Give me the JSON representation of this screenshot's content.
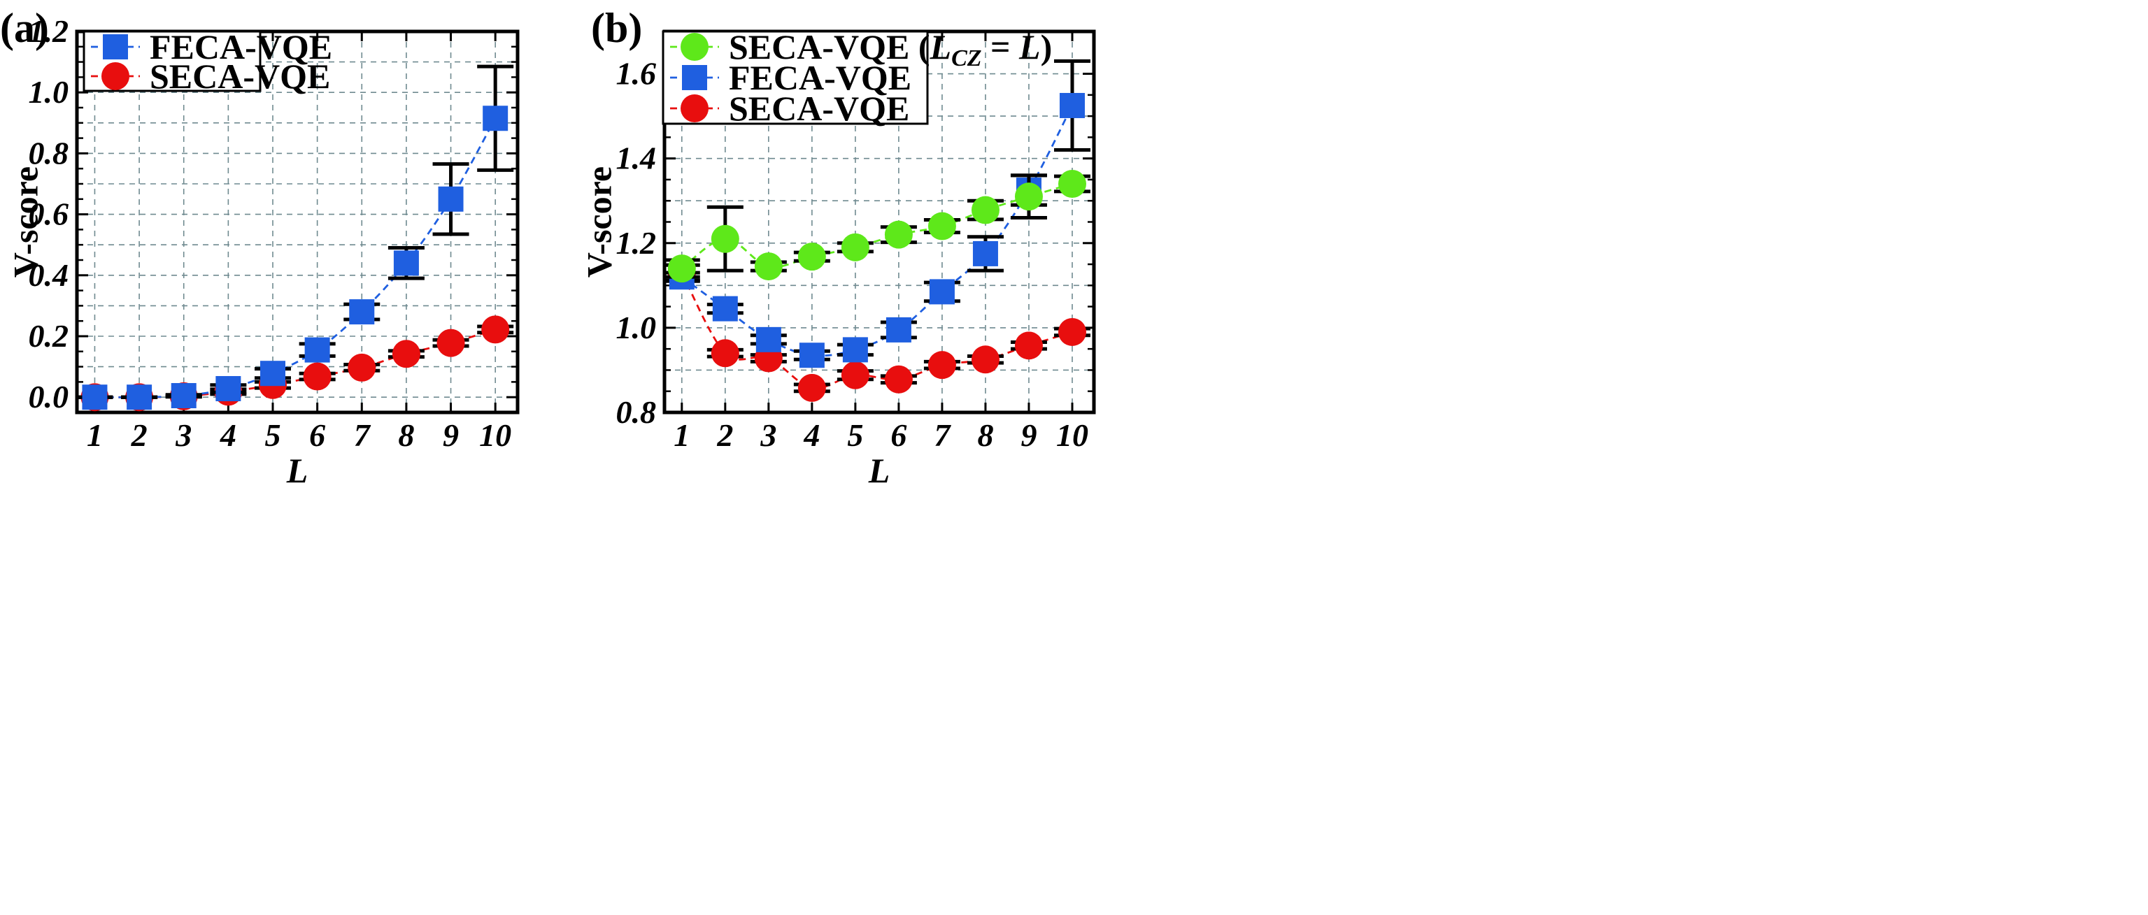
{
  "chart_data": [
    {
      "type": "line",
      "panel_label": "(a)",
      "xlabel": "L",
      "ylabel": "V-score",
      "xlim": [
        0.6,
        10.5
      ],
      "ylim": [
        -0.05,
        1.2
      ],
      "x": [
        1,
        2,
        3,
        4,
        5,
        6,
        7,
        8,
        9,
        10
      ],
      "x_ticks": [
        "1",
        "2",
        "3",
        "4",
        "5",
        "6",
        "7",
        "8",
        "9",
        "10"
      ],
      "y_ticks": [
        "0.0",
        "0.2",
        "0.4",
        "0.6",
        "0.8",
        "1.0",
        "1.2"
      ],
      "y_tick_values": [
        0.0,
        0.2,
        0.4,
        0.6,
        0.8,
        1.0,
        1.2
      ],
      "grid": true,
      "legend_position": "top-left",
      "series": [
        {
          "name": "FECA-VQE",
          "color": "#1f5fe0",
          "marker": "square",
          "values": [
            0.0,
            0.0,
            0.005,
            0.028,
            0.078,
            0.155,
            0.28,
            0.44,
            0.65,
            0.915
          ],
          "err_low": [
            0.0,
            0.0,
            0.003,
            0.012,
            0.015,
            0.02,
            0.025,
            0.05,
            0.115,
            0.17
          ],
          "err_high": [
            0.0,
            0.0,
            0.003,
            0.012,
            0.015,
            0.02,
            0.025,
            0.05,
            0.115,
            0.17
          ]
        },
        {
          "name": "SECA-VQE",
          "color": "#e80e0e",
          "marker": "circle",
          "values": [
            0.0,
            0.0,
            0.003,
            0.018,
            0.04,
            0.068,
            0.097,
            0.142,
            0.178,
            0.222
          ],
          "err_low": [
            0.0,
            0.0,
            0.002,
            0.008,
            0.01,
            0.01,
            0.01,
            0.01,
            0.01,
            0.01
          ],
          "err_high": [
            0.0,
            0.0,
            0.002,
            0.008,
            0.01,
            0.01,
            0.01,
            0.01,
            0.01,
            0.01
          ]
        }
      ]
    },
    {
      "type": "line",
      "panel_label": "(b)",
      "xlabel": "L",
      "ylabel": "V-score",
      "xlim": [
        0.6,
        10.5
      ],
      "ylim": [
        0.8,
        1.7
      ],
      "x": [
        1,
        2,
        3,
        4,
        5,
        6,
        7,
        8,
        9,
        10
      ],
      "x_ticks": [
        "1",
        "2",
        "3",
        "4",
        "5",
        "6",
        "7",
        "8",
        "9",
        "10"
      ],
      "y_ticks": [
        "0.8",
        "1.0",
        "1.2",
        "1.4",
        "1.6"
      ],
      "y_tick_values": [
        0.8,
        1.0,
        1.2,
        1.4,
        1.6
      ],
      "grid": true,
      "legend_position": "top-left",
      "series": [
        {
          "name": "SECA-VQE (L",
          "name_sub": "CZ",
          "name_tail": " = L)",
          "color": "#5ee81a",
          "marker": "circle",
          "values": [
            1.14,
            1.21,
            1.145,
            1.168,
            1.19,
            1.22,
            1.24,
            1.278,
            1.31,
            1.34
          ],
          "err_low": [
            0.02,
            0.075,
            0.01,
            0.01,
            0.01,
            0.018,
            0.015,
            0.022,
            0.05,
            0.018
          ],
          "err_high": [
            0.02,
            0.075,
            0.01,
            0.01,
            0.01,
            0.018,
            0.015,
            0.022,
            0.05,
            0.018
          ]
        },
        {
          "name": "FECA-VQE",
          "color": "#1f5fe0",
          "marker": "square",
          "values": [
            1.12,
            1.045,
            0.972,
            0.935,
            0.948,
            0.995,
            1.085,
            1.175,
            1.325,
            1.525
          ],
          "err_low": [
            0.01,
            0.01,
            0.01,
            0.01,
            0.012,
            0.018,
            0.022,
            0.04,
            0.035,
            0.105
          ],
          "err_high": [
            0.01,
            0.01,
            0.01,
            0.01,
            0.012,
            0.018,
            0.022,
            0.04,
            0.035,
            0.105
          ]
        },
        {
          "name": "SECA-VQE",
          "color": "#e80e0e",
          "marker": "circle",
          "values": [
            1.13,
            0.94,
            0.928,
            0.858,
            0.888,
            0.878,
            0.912,
            0.925,
            0.958,
            0.99
          ],
          "err_low": [
            0.018,
            0.008,
            0.008,
            0.008,
            0.01,
            0.008,
            0.008,
            0.008,
            0.008,
            0.008
          ],
          "err_high": [
            0.018,
            0.008,
            0.008,
            0.008,
            0.01,
            0.008,
            0.008,
            0.008,
            0.008,
            0.008
          ]
        }
      ]
    }
  ]
}
